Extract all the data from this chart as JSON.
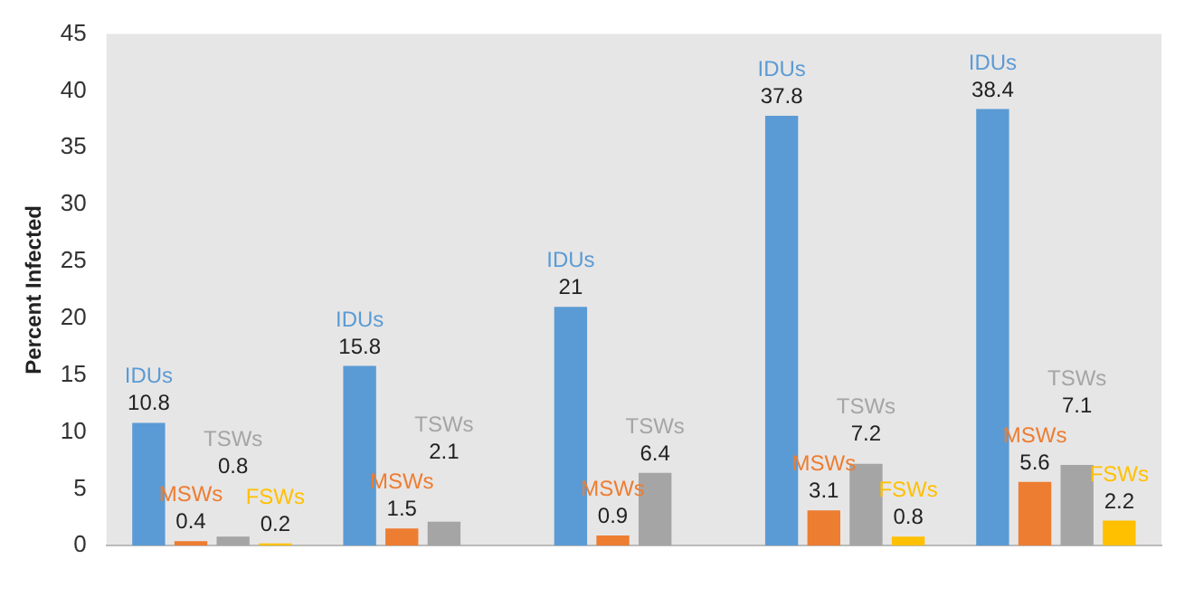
{
  "chart_data": {
    "type": "bar",
    "ylabel": "Percent Infected",
    "categories": [
      null,
      null,
      null,
      null,
      null
    ],
    "series": [
      {
        "name": "IDUs",
        "color": "#5b9bd5",
        "values": [
          10.8,
          15.8,
          21,
          37.8,
          38.4
        ]
      },
      {
        "name": "MSWs",
        "color": "#ed7d31",
        "values": [
          0.4,
          1.5,
          0.9,
          3.1,
          5.6
        ]
      },
      {
        "name": "TSWs",
        "color": "#a5a5a5",
        "values": [
          0.8,
          2.1,
          6.4,
          7.2,
          7.1
        ]
      },
      {
        "name": "FSWs",
        "color": "#ffc000",
        "values": [
          0.2,
          null,
          null,
          0.8,
          2.2
        ]
      }
    ],
    "ylim": [
      0,
      45
    ],
    "yticks": [
      0,
      5,
      10,
      15,
      20,
      25,
      30,
      35,
      40,
      45
    ],
    "grid": false,
    "legend": false,
    "data_labels": true
  }
}
